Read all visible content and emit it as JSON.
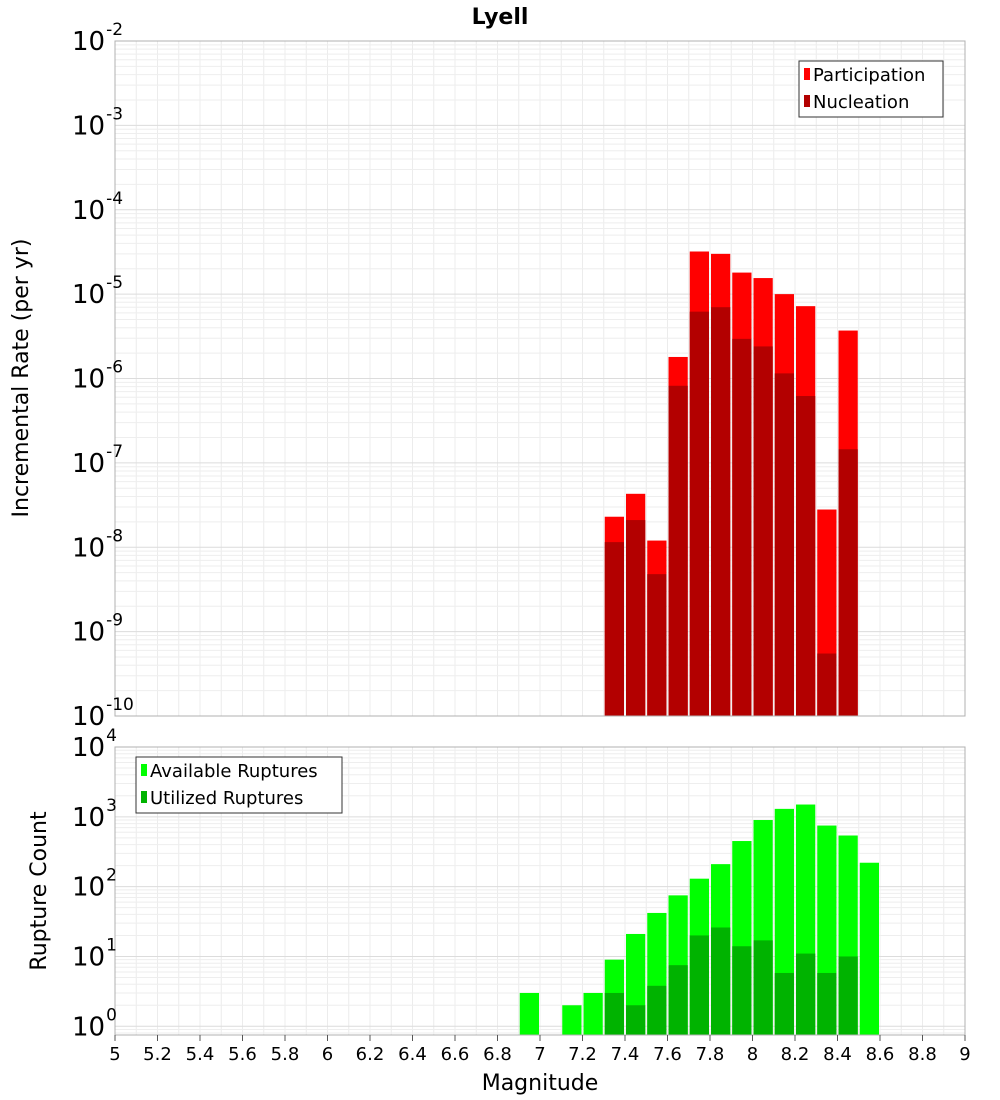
{
  "title": "Lyell",
  "x_axis": {
    "label": "Magnitude",
    "ticks": [
      "5",
      "5.2",
      "5.4",
      "5.6",
      "5.8",
      "6",
      "6.2",
      "6.4",
      "6.6",
      "6.8",
      "7",
      "7.2",
      "7.4",
      "7.6",
      "7.8",
      "8",
      "8.2",
      "8.4",
      "8.6",
      "8.8",
      "9"
    ]
  },
  "chart_data": [
    {
      "type": "bar",
      "ylabel": "Incremental Rate (per yr)",
      "xlabel": "",
      "xlim": [
        5,
        9
      ],
      "ylim": [
        1e-10,
        0.01
      ],
      "y_scale": "log",
      "y_tick_exponents": [
        "-10",
        "-9",
        "-8",
        "-7",
        "-6",
        "-5",
        "-4",
        "-3",
        "-2"
      ],
      "grid": true,
      "legend_position": "top-right",
      "bar_width": 0.1,
      "x": [
        7.35,
        7.45,
        7.55,
        7.65,
        7.75,
        7.85,
        7.95,
        8.05,
        8.15,
        8.25,
        8.35,
        8.45
      ],
      "series": [
        {
          "name": "Participation",
          "color": "#ff0000",
          "values": [
            2.3e-08,
            4.3e-08,
            1.2e-08,
            1.8e-06,
            3.2e-05,
            3e-05,
            1.8e-05,
            1.55e-05,
            1e-05,
            7.2e-06,
            2.8e-08,
            3.7e-06
          ]
        },
        {
          "name": "Nucleation",
          "color": "#b30000",
          "values": [
            1.15e-08,
            2.1e-08,
            4.8e-09,
            8.2e-07,
            6.2e-06,
            7e-06,
            2.95e-06,
            2.4e-06,
            1.15e-06,
            6.2e-07,
            5.5e-10,
            1.45e-07
          ]
        }
      ]
    },
    {
      "type": "bar",
      "ylabel": "Rupture Count",
      "xlabel": "Magnitude",
      "xlim": [
        5,
        9
      ],
      "ylim": [
        0.75,
        10000
      ],
      "y_scale": "log",
      "y_tick_exponents": [
        "0",
        "1",
        "2",
        "3",
        "4"
      ],
      "grid": true,
      "legend_position": "top-left",
      "bar_width": 0.1,
      "x": [
        6.95,
        7.15,
        7.25,
        7.35,
        7.45,
        7.55,
        7.65,
        7.75,
        7.85,
        7.95,
        8.05,
        8.15,
        8.25,
        8.35,
        8.45,
        8.55
      ],
      "series": [
        {
          "name": "Available Ruptures",
          "color": "#00ff00",
          "values": [
            3,
            2,
            3,
            9,
            21,
            42,
            75,
            130,
            210,
            450,
            900,
            1300,
            1500,
            750,
            540,
            220
          ]
        },
        {
          "name": "Utilized Ruptures",
          "color": "#00b300",
          "values": [
            0,
            0,
            0,
            3,
            2,
            3.8,
            7.5,
            20,
            26,
            14,
            17,
            5.8,
            11,
            5.8,
            10,
            0
          ]
        }
      ]
    }
  ]
}
